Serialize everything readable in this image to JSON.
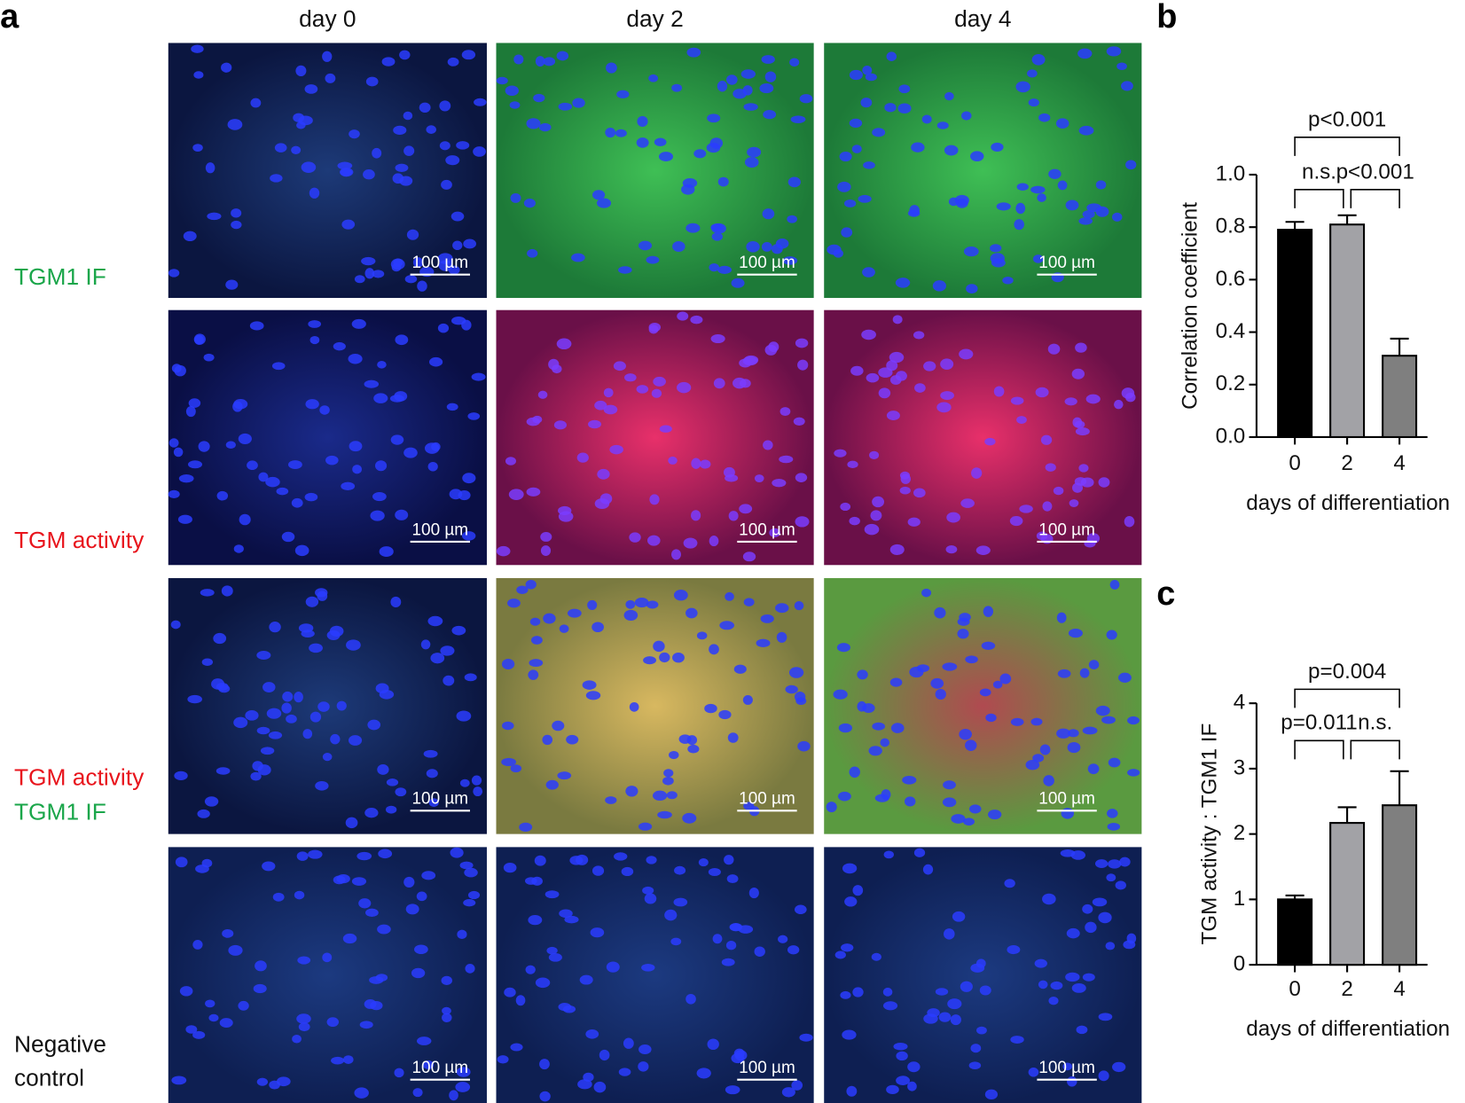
{
  "panel_labels": [
    "a",
    "b",
    "c"
  ],
  "microscopy": {
    "columns": [
      "day 0",
      "day 2",
      "day 4"
    ],
    "rows": [
      {
        "label": [
          {
            "text": "TGM1 IF",
            "color": "#1aa64a"
          }
        ]
      },
      {
        "label": [
          {
            "text": "TGM activity",
            "color": "#e8141c"
          }
        ]
      },
      {
        "label": [
          {
            "text": "TGM activity",
            "color": "#e8141c"
          },
          {
            "text": "TGM1 IF",
            "color": "#1aa64a"
          }
        ]
      },
      {
        "label": [
          {
            "text": "Negative",
            "color": "#111111"
          },
          {
            "text": "control",
            "color": "#111111"
          }
        ]
      }
    ],
    "scale_bar": "100 µm"
  },
  "chart_data": [
    {
      "type": "bar",
      "ylabel": "Correlation coefficient",
      "xlabel": "days of differentiation",
      "categories": [
        "0",
        "2",
        "4"
      ],
      "values": [
        0.79,
        0.81,
        0.31
      ],
      "errors": [
        0.03,
        0.035,
        0.065
      ],
      "colors": [
        "#000000",
        "#a2a2a6",
        "#7f7f7f"
      ],
      "ylim": [
        0,
        1.0
      ],
      "yticks": [
        {
          "value": 0,
          "label": "0.0"
        },
        {
          "value": 0.2,
          "label": "0.2"
        },
        {
          "value": 0.4,
          "label": "0.4"
        },
        {
          "value": 0.6,
          "label": "0.6"
        },
        {
          "value": 0.8,
          "label": "0.8"
        },
        {
          "value": 1.0,
          "label": "1.0"
        }
      ],
      "brackets": [
        {
          "label": "p<0.001",
          "between": [
            "0",
            "4"
          ]
        },
        {
          "label": "n.s.",
          "between": [
            "0",
            "2"
          ]
        },
        {
          "label": "p<0.001",
          "between": [
            "2",
            "4"
          ]
        }
      ]
    },
    {
      "type": "bar",
      "ylabel": "TGM activity : TGM1 IF",
      "xlabel": "days of differentiation",
      "categories": [
        "0",
        "2",
        "4"
      ],
      "values": [
        1.0,
        2.17,
        2.44
      ],
      "errors": [
        0.06,
        0.24,
        0.52
      ],
      "colors": [
        "#000000",
        "#a2a2a6",
        "#7f7f7f"
      ],
      "ylim": [
        0,
        4
      ],
      "yticks": [
        0,
        1,
        2,
        3,
        4
      ],
      "brackets": [
        {
          "label": "p=0.004",
          "between": [
            "0",
            "4"
          ]
        },
        {
          "label": "p=0.011",
          "between": [
            "0",
            "2"
          ]
        },
        {
          "label": "n.s.",
          "between": [
            "2",
            "4"
          ]
        }
      ]
    }
  ]
}
